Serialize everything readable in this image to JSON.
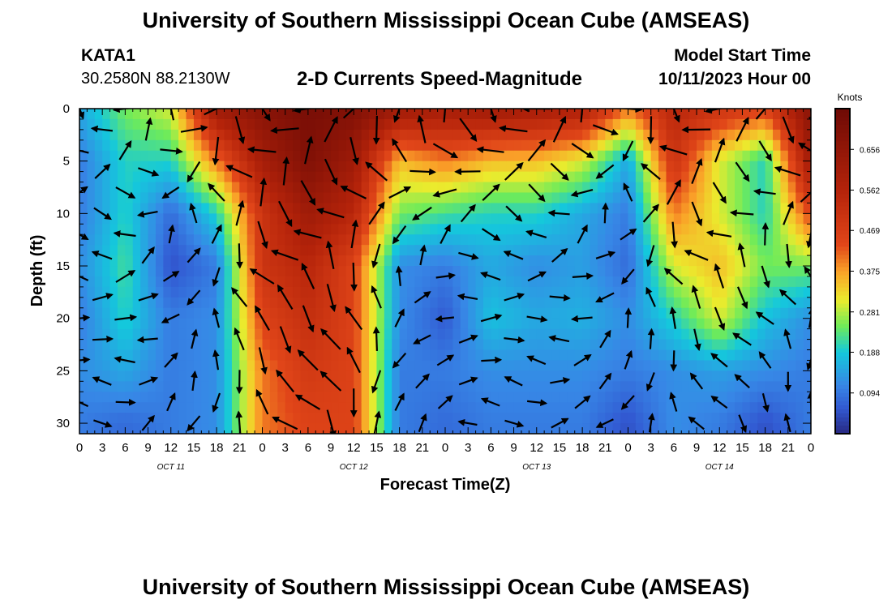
{
  "header": {
    "title": "University of Southern Mississippi Ocean Cube (AMSEAS)",
    "station_id": "KATA1",
    "coordinates": "30.2580N  88.2130W",
    "subtitle": "2-D Currents Speed-Magnitude",
    "model_start_label": "Model Start Time",
    "model_start_value": "10/11/2023 Hour 00"
  },
  "footer": {
    "title": "University of Southern Mississippi Ocean Cube (AMSEAS)"
  },
  "chart_data": {
    "type": "heatmap",
    "title": "2-D Currents Speed-Magnitude",
    "xlabel": "Forecast Time(Z)",
    "ylabel": "Depth (ft)",
    "x_ticks": [
      "0",
      "3",
      "6",
      "9",
      "12",
      "15",
      "18",
      "21",
      "0",
      "3",
      "6",
      "9",
      "12",
      "15",
      "18",
      "21",
      "0",
      "3",
      "6",
      "9",
      "12",
      "15",
      "18",
      "21",
      "0",
      "3",
      "6",
      "9",
      "12",
      "15",
      "18",
      "21",
      "0"
    ],
    "x_range_hours": [
      0,
      96
    ],
    "date_labels": [
      {
        "label": "OCT 11",
        "hour": 12
      },
      {
        "label": "OCT 12",
        "hour": 36
      },
      {
        "label": "OCT 13",
        "hour": 60
      },
      {
        "label": "OCT 14",
        "hour": 84
      }
    ],
    "y_ticks": [
      0,
      5,
      10,
      15,
      20,
      25,
      30
    ],
    "ylim": [
      0,
      31
    ],
    "y_inverted": true,
    "colorbar": {
      "unit_label": "Knots",
      "tick_labels": [
        "0.656",
        "0.562",
        "0.469",
        "0.375",
        "0.281",
        "0.188",
        "0.094"
      ],
      "tick_values": [
        0.656,
        0.562,
        0.469,
        0.375,
        0.281,
        0.188,
        0.094
      ],
      "range": [
        0.0,
        0.75
      ]
    },
    "field": {
      "description": "Approximate current speed (knots) at forecast hours x depths (ft)",
      "hours": [
        0,
        6,
        12,
        18,
        24,
        30,
        36,
        42,
        48,
        54,
        60,
        66,
        72,
        78,
        84,
        90,
        96
      ],
      "depths": [
        0,
        5,
        10,
        15,
        20,
        25,
        30
      ],
      "speed_knots": [
        [
          0.15,
          0.25,
          0.3,
          0.62,
          0.68,
          0.72,
          0.7,
          0.62,
          0.6,
          0.62,
          0.6,
          0.58,
          0.4,
          0.55,
          0.5,
          0.45,
          0.68
        ],
        [
          0.1,
          0.2,
          0.2,
          0.4,
          0.6,
          0.7,
          0.62,
          0.35,
          0.4,
          0.35,
          0.35,
          0.3,
          0.15,
          0.5,
          0.3,
          0.2,
          0.62
        ],
        [
          0.1,
          0.2,
          0.08,
          0.2,
          0.5,
          0.62,
          0.55,
          0.25,
          0.22,
          0.2,
          0.2,
          0.15,
          0.1,
          0.4,
          0.3,
          0.2,
          0.45
        ],
        [
          0.12,
          0.22,
          0.05,
          0.1,
          0.5,
          0.55,
          0.45,
          0.12,
          0.1,
          0.15,
          0.12,
          0.14,
          0.08,
          0.3,
          0.35,
          0.25,
          0.25
        ],
        [
          0.1,
          0.2,
          0.1,
          0.12,
          0.45,
          0.52,
          0.45,
          0.12,
          0.06,
          0.18,
          0.15,
          0.16,
          0.12,
          0.2,
          0.3,
          0.18,
          0.12
        ],
        [
          0.12,
          0.15,
          0.1,
          0.12,
          0.4,
          0.48,
          0.45,
          0.1,
          0.1,
          0.12,
          0.12,
          0.12,
          0.1,
          0.12,
          0.14,
          0.12,
          0.1
        ],
        [
          0.1,
          0.08,
          0.1,
          0.12,
          0.4,
          0.45,
          0.45,
          0.1,
          0.08,
          0.1,
          0.1,
          0.1,
          0.05,
          0.12,
          0.1,
          0.05,
          0.1
        ]
      ]
    }
  }
}
